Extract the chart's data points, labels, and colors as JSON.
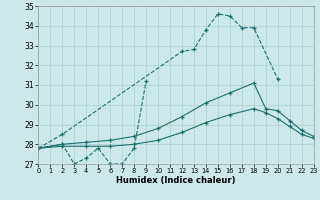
{
  "xlabel": "Humidex (Indice chaleur)",
  "xlim": [
    0,
    23
  ],
  "ylim": [
    27,
    35
  ],
  "xticks": [
    0,
    1,
    2,
    3,
    4,
    5,
    6,
    7,
    8,
    9,
    10,
    11,
    12,
    13,
    14,
    15,
    16,
    17,
    18,
    19,
    20,
    21,
    22,
    23
  ],
  "yticks": [
    27,
    28,
    29,
    30,
    31,
    32,
    33,
    34,
    35
  ],
  "bg_color": "#cde8e8",
  "grid_color": "#aad0d0",
  "line_color": "#1e7070",
  "line1_x": [
    0,
    2,
    12,
    13,
    14,
    15,
    16,
    17,
    18,
    20
  ],
  "line1_y": [
    27.8,
    28.5,
    32.7,
    32.8,
    33.8,
    34.6,
    34.5,
    33.9,
    33.9,
    31.3
  ],
  "line2_x": [
    0,
    2,
    3,
    4,
    5,
    6,
    7,
    8,
    9
  ],
  "line2_y": [
    27.8,
    28.0,
    27.0,
    27.3,
    27.8,
    27.0,
    27.0,
    27.8,
    31.2
  ],
  "line3_x": [
    0,
    2,
    4,
    6,
    8,
    10,
    12,
    14,
    16,
    18,
    19,
    20,
    21,
    22,
    23
  ],
  "line3_y": [
    27.8,
    28.0,
    28.1,
    28.2,
    28.4,
    28.8,
    29.4,
    30.1,
    30.6,
    31.1,
    29.8,
    29.7,
    29.2,
    28.7,
    28.4
  ],
  "line4_x": [
    0,
    2,
    4,
    6,
    8,
    10,
    12,
    14,
    16,
    18,
    19,
    20,
    21,
    22,
    23
  ],
  "line4_y": [
    27.8,
    27.9,
    27.9,
    27.9,
    28.0,
    28.2,
    28.6,
    29.1,
    29.5,
    29.8,
    29.6,
    29.3,
    28.9,
    28.5,
    28.3
  ]
}
